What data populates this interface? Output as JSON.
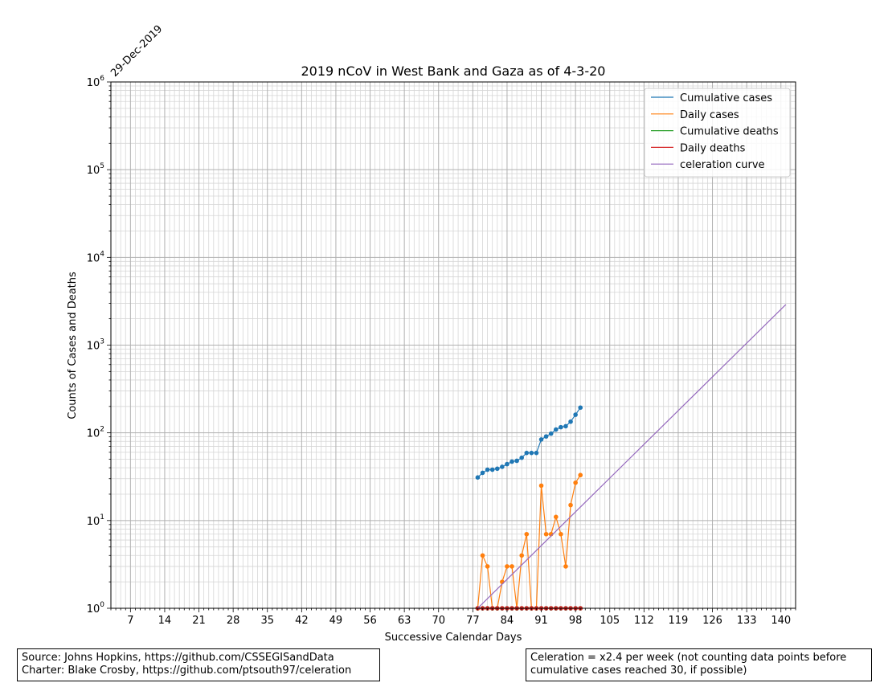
{
  "chart_data": {
    "type": "line",
    "title": "2019 nCoV in West Bank and Gaza as of 4-3-20",
    "xlabel": "Successive Calendar Days",
    "ylabel": "Counts of Cases and Deaths",
    "start_date_label": "29-Dec-2019",
    "x_scale": "linear",
    "y_scale": "log",
    "xlim": [
      3,
      143
    ],
    "ylim": [
      1,
      1000000
    ],
    "x_ticks": [
      7,
      14,
      21,
      28,
      35,
      42,
      49,
      56,
      63,
      70,
      77,
      84,
      91,
      98,
      105,
      112,
      119,
      126,
      133,
      140
    ],
    "y_ticks": [
      1,
      10,
      100,
      1000,
      10000,
      100000,
      1000000
    ],
    "y_tick_labels": [
      "10^0",
      "10^1",
      "10^2",
      "10^3",
      "10^4",
      "10^5",
      "10^6"
    ],
    "grid": "major and minor",
    "legend_position": "top-right",
    "series": [
      {
        "name": "Cumulative cases",
        "color": "#1f77b4",
        "markers": true,
        "x": [
          78,
          79,
          80,
          81,
          82,
          83,
          84,
          85,
          86,
          87,
          88,
          89,
          90,
          91,
          92,
          93,
          94,
          95,
          96,
          97,
          98,
          99
        ],
        "y": [
          31,
          35,
          38,
          38,
          39,
          41,
          44,
          47,
          48,
          52,
          59,
          59,
          59,
          84,
          91,
          98,
          109,
          116,
          119,
          134,
          161,
          194
        ]
      },
      {
        "name": "Daily cases",
        "color": "#ff7f0e",
        "markers": true,
        "x": [
          78,
          79,
          80,
          81,
          82,
          83,
          84,
          85,
          86,
          87,
          88,
          89,
          90,
          91,
          92,
          93,
          94,
          95,
          96,
          97,
          98,
          99
        ],
        "y": [
          1,
          4,
          3,
          1,
          1,
          2,
          3,
          3,
          1,
          4,
          7,
          1,
          1,
          25,
          7,
          7,
          11,
          7,
          3,
          15,
          27,
          33
        ]
      },
      {
        "name": "Cumulative deaths",
        "color": "#2ca02c",
        "markers": true,
        "x": [
          78,
          79,
          80,
          81,
          82,
          83,
          84,
          85,
          86,
          87,
          88,
          89,
          90,
          91,
          92,
          93,
          94,
          95,
          96,
          97,
          98,
          99
        ],
        "y": [
          1,
          1,
          1,
          1,
          1,
          1,
          1,
          1,
          1,
          1,
          1,
          1,
          1,
          1,
          1,
          1,
          1,
          1,
          1,
          1,
          1,
          1
        ]
      },
      {
        "name": "Daily deaths",
        "color": "#d62728",
        "markers": true,
        "x": [
          78,
          79,
          80,
          81,
          82,
          83,
          84,
          85,
          86,
          87,
          88,
          89,
          90,
          91,
          92,
          93,
          94,
          95,
          96,
          97,
          98,
          99
        ],
        "y": [
          1,
          1,
          1,
          1,
          1,
          1,
          1,
          1,
          1,
          1,
          1,
          1,
          1,
          1,
          1,
          1,
          1,
          1,
          1,
          1,
          1,
          1
        ]
      },
      {
        "name": "celeration curve",
        "color": "#9467bd",
        "markers": false,
        "x": [
          78,
          141
        ],
        "y": [
          1,
          2900
        ]
      }
    ]
  },
  "notes": {
    "source_line1": "Source: Johns Hopkins, https://github.com/CSSEGISandData",
    "source_line2": "Charter: Blake Crosby, https://github.com/ptsouth97/celeration",
    "celeration_line1": "Celeration = x2.4 per week (not counting data points before",
    "celeration_line2": "cumulative cases reached 30, if possible)"
  }
}
